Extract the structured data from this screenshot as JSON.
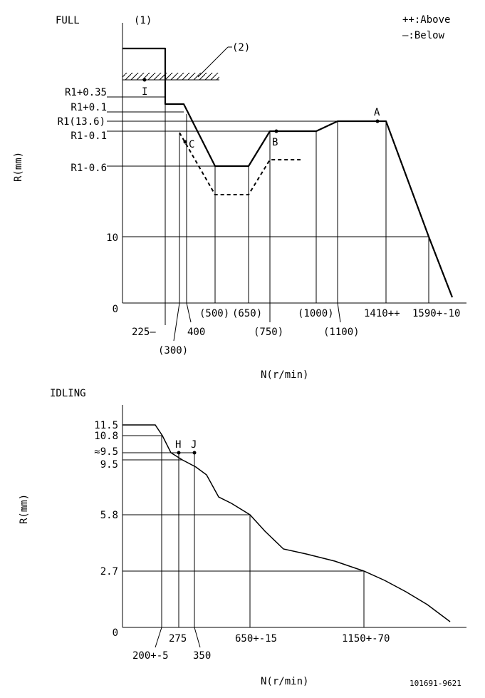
{
  "full": {
    "title": "FULL",
    "marker1": "(1)",
    "marker2": "(2)",
    "legend_above": "++:Above",
    "legend_below": "—:Below",
    "y_axis_label": "R(mm)",
    "x_axis_label": "N(r/min)",
    "y_ticks": [
      "R1+0.35",
      "R1+0.1",
      "R1(13.6)",
      "R1-0.1",
      "R1-0.6",
      "10",
      "0"
    ],
    "x_ticks": [
      "225—",
      "(300)",
      "400",
      "(500)",
      "(650)",
      "(750)",
      "(1000)",
      "(1100)",
      "1410++",
      "1590+-10"
    ],
    "points": {
      "I": "I",
      "C": "C",
      "B": "B",
      "A": "A"
    }
  },
  "idling": {
    "title": "IDLING",
    "y_axis_label": "R(mm)",
    "x_axis_label": "N(r/min)",
    "y_ticks": [
      "11.5",
      "10.8",
      "≈9.5",
      "9.5",
      "5.8",
      "2.7",
      "0"
    ],
    "x_ticks": [
      "200+-5",
      "275",
      "350",
      "650+-15",
      "1150+-70"
    ],
    "points": {
      "H": "H",
      "J": "J"
    }
  },
  "drawing_number": "101691-9621"
}
